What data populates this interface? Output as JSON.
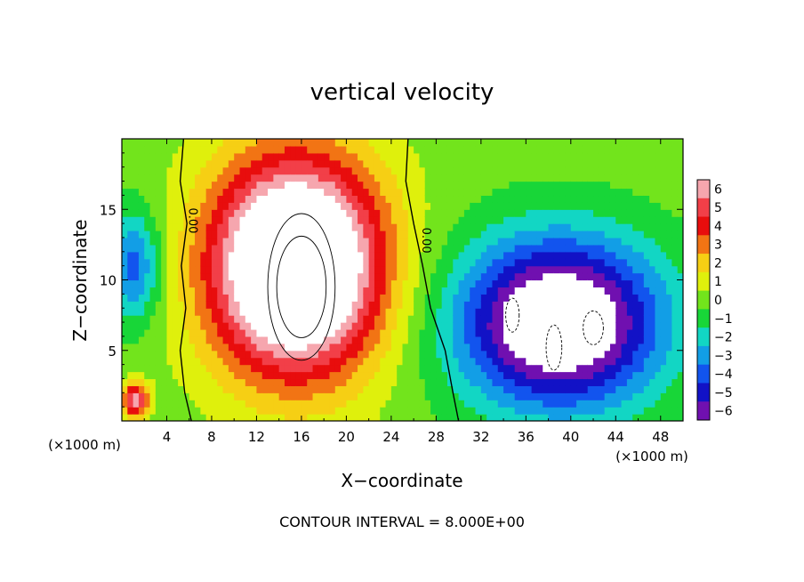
{
  "chart_data": {
    "type": "heatmap",
    "title": "vertical velocity",
    "xlabel": "X−coordinate",
    "ylabel": "Z−coordinate",
    "x_unit": "(×1000 m)",
    "y_unit": "(×1000 m)",
    "xlim": [
      0,
      50
    ],
    "ylim": [
      0,
      20
    ],
    "x_ticks": [
      4,
      8,
      12,
      16,
      20,
      24,
      28,
      32,
      36,
      40,
      44,
      48
    ],
    "x_tick_labels": [
      "4",
      "8",
      "12",
      "16",
      "20",
      "24",
      "28",
      "32",
      "36",
      "40",
      "44",
      "48"
    ],
    "y_ticks": [
      5,
      10,
      15
    ],
    "y_tick_labels": [
      "5",
      "10",
      "15"
    ],
    "colorbar": {
      "min": -6,
      "max": 6,
      "levels": [
        6,
        5,
        4,
        3,
        2,
        1,
        0,
        -1,
        -2,
        -3,
        -4,
        -5,
        -6
      ],
      "labels": [
        "6",
        "5",
        "4",
        "3",
        "2",
        "1",
        "0",
        "−1",
        "−2",
        "−3",
        "−4",
        "−5",
        "−6"
      ],
      "colors": [
        "#f6a6ae",
        "#f23f48",
        "#e80d0d",
        "#f27414",
        "#f6cf14",
        "#dff00c",
        "#72e41c",
        "#18d638",
        "#12d6c4",
        "#129ee6",
        "#1254ee",
        "#1212c6",
        "#7010b0"
      ]
    },
    "zero_contour_label": "0.00",
    "contour_interval_text": "CONTOUR INTERVAL = 8.000E+00",
    "features": [
      {
        "kind": "updraft",
        "x": 15.5,
        "z": 11,
        "sx": 7.5,
        "sz": 7.5,
        "peak": 12
      },
      {
        "kind": "downdraft",
        "x": 39,
        "z": 7,
        "sx": 9,
        "sz": 6,
        "peak": -9
      },
      {
        "kind": "downdraft",
        "x": 1,
        "z": 11,
        "sx": 2.5,
        "sz": 4,
        "peak": -4
      },
      {
        "kind": "updraft",
        "x": 1.2,
        "z": 1.5,
        "sx": 1.2,
        "sz": 1.2,
        "peak": 6
      }
    ]
  }
}
